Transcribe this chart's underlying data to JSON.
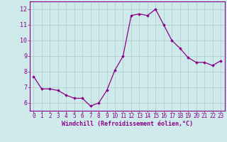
{
  "x": [
    0,
    1,
    2,
    3,
    4,
    5,
    6,
    7,
    8,
    9,
    10,
    11,
    12,
    13,
    14,
    15,
    16,
    17,
    18,
    19,
    20,
    21,
    22,
    23
  ],
  "y": [
    7.7,
    6.9,
    6.9,
    6.8,
    6.5,
    6.3,
    6.3,
    5.8,
    6.0,
    6.8,
    8.1,
    9.0,
    11.6,
    11.7,
    11.6,
    12.0,
    11.0,
    10.0,
    9.5,
    8.9,
    8.6,
    8.6,
    8.4,
    8.7
  ],
  "line_color": "#8B008B",
  "marker": "D",
  "marker_size": 1.8,
  "line_width": 0.9,
  "bg_color": "#ceeaea",
  "grid_color": "#b0c8c8",
  "xlabel": "Windchill (Refroidissement éolien,°C)",
  "xlabel_color": "#8B008B",
  "tick_color": "#8B008B",
  "xlim": [
    -0.5,
    23.5
  ],
  "ylim": [
    5.5,
    12.5
  ],
  "yticks": [
    6,
    7,
    8,
    9,
    10,
    11,
    12
  ],
  "xticks": [
    0,
    1,
    2,
    3,
    4,
    5,
    6,
    7,
    8,
    9,
    10,
    11,
    12,
    13,
    14,
    15,
    16,
    17,
    18,
    19,
    20,
    21,
    22,
    23
  ],
  "spine_color": "#8B008B",
  "tick_fontsize": 5.5,
  "xlabel_fontsize": 6.0
}
